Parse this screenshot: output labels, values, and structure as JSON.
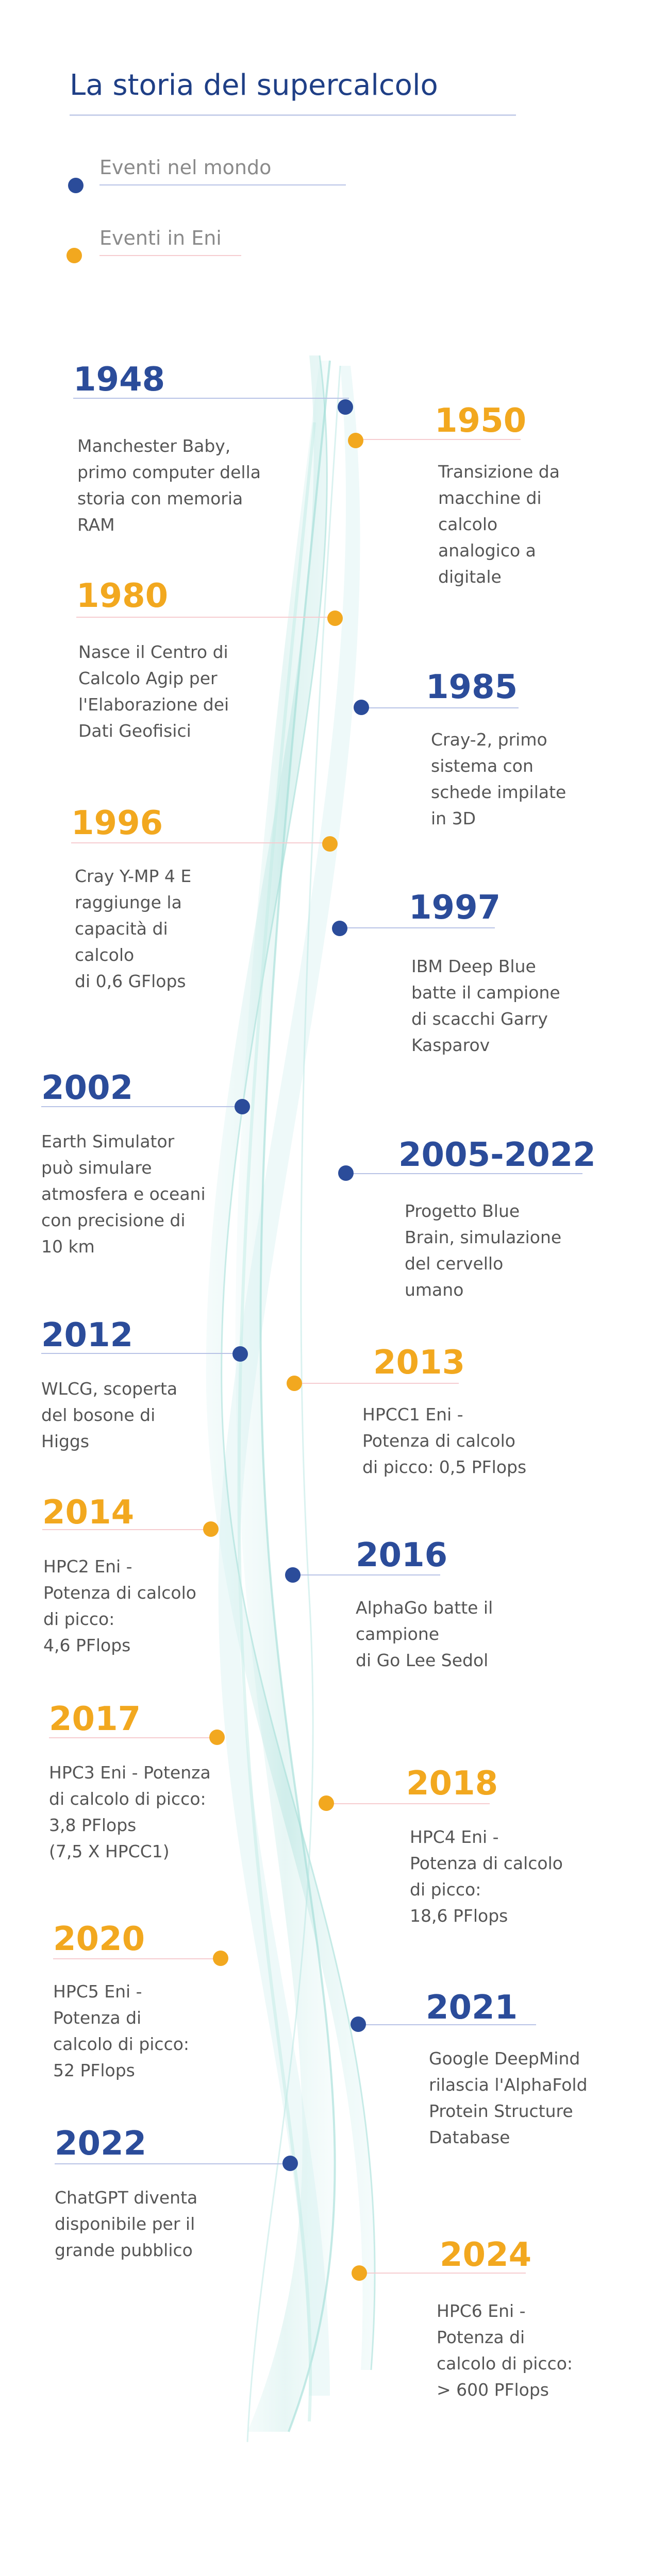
{
  "title": "La storia del supercalcolo",
  "colors": {
    "world": "#2b4c9a",
    "eni": "#f2a81f",
    "world_line": "#b8c3e6",
    "eni_line": "#f6ccd0",
    "wave": "#9fdcd6"
  },
  "legend": [
    {
      "type": "world",
      "label": "Eventi nel mondo"
    },
    {
      "type": "eni",
      "label": "Eventi in Eni"
    }
  ],
  "events": [
    {
      "type": "world",
      "year": "1948",
      "text": "Manchester Baby,\nprimo computer della\nstoria con memoria\nRAM"
    },
    {
      "type": "eni",
      "year": "1950",
      "text": "Transizione da\nmacchine di\ncalcolo\nanalogico a\ndigitale"
    },
    {
      "type": "eni",
      "year": "1980",
      "text": "Nasce il Centro di\nCalcolo Agip per\nl'Elaborazione dei\nDati Geofisici"
    },
    {
      "type": "world",
      "year": "1985",
      "text": "Cray-2, primo\nsistema con\nschede impilate\nin 3D"
    },
    {
      "type": "eni",
      "year": "1996",
      "text": "Cray Y-MP 4 E\nraggiunge la\ncapacità di\ncalcolo\ndi 0,6 GFlops"
    },
    {
      "type": "world",
      "year": "1997",
      "text": "IBM Deep Blue\nbatte il campione\ndi scacchi Garry\nKasparov"
    },
    {
      "type": "world",
      "year": "2002",
      "text": "Earth Simulator\npuò simulare\natmosfera e oceani\ncon precisione di\n10 km"
    },
    {
      "type": "world",
      "year": "2005-2022",
      "text": "Progetto Blue\nBrain, simulazione\ndel cervello\numano"
    },
    {
      "type": "world",
      "year": "2012",
      "text": "WLCG, scoperta\ndel bosone di\nHiggs"
    },
    {
      "type": "eni",
      "year": "2013",
      "text": "HPCC1 Eni -\nPotenza di calcolo\ndi picco: 0,5 PFlops"
    },
    {
      "type": "eni",
      "year": "2014",
      "text": "HPC2 Eni -\nPotenza di calcolo\ndi picco:\n4,6 PFlops"
    },
    {
      "type": "world",
      "year": "2016",
      "text": "AlphaGo batte il\ncampione\ndi Go Lee Sedol"
    },
    {
      "type": "eni",
      "year": "2017",
      "text": "HPC3 Eni - Potenza\ndi calcolo di picco:\n3,8 PFlops\n(7,5 X HPCC1)"
    },
    {
      "type": "eni",
      "year": "2018",
      "text": "HPC4 Eni -\nPotenza di calcolo\ndi picco:\n18,6 PFlops"
    },
    {
      "type": "eni",
      "year": "2020",
      "text": "HPC5 Eni -\nPotenza di\ncalcolo di picco:\n52 PFlops"
    },
    {
      "type": "world",
      "year": "2021",
      "text": "Google DeepMind\nrilascia l'AlphaFold\nProtein Structure\nDatabase"
    },
    {
      "type": "world",
      "year": "2022",
      "text": "ChatGPT diventa\ndisponibile per il\ngrande pubblico"
    },
    {
      "type": "eni",
      "year": "2024",
      "text": "HPC6 Eni -\nPotenza di\ncalcolo di picco:\n> 600 PFlops"
    }
  ]
}
